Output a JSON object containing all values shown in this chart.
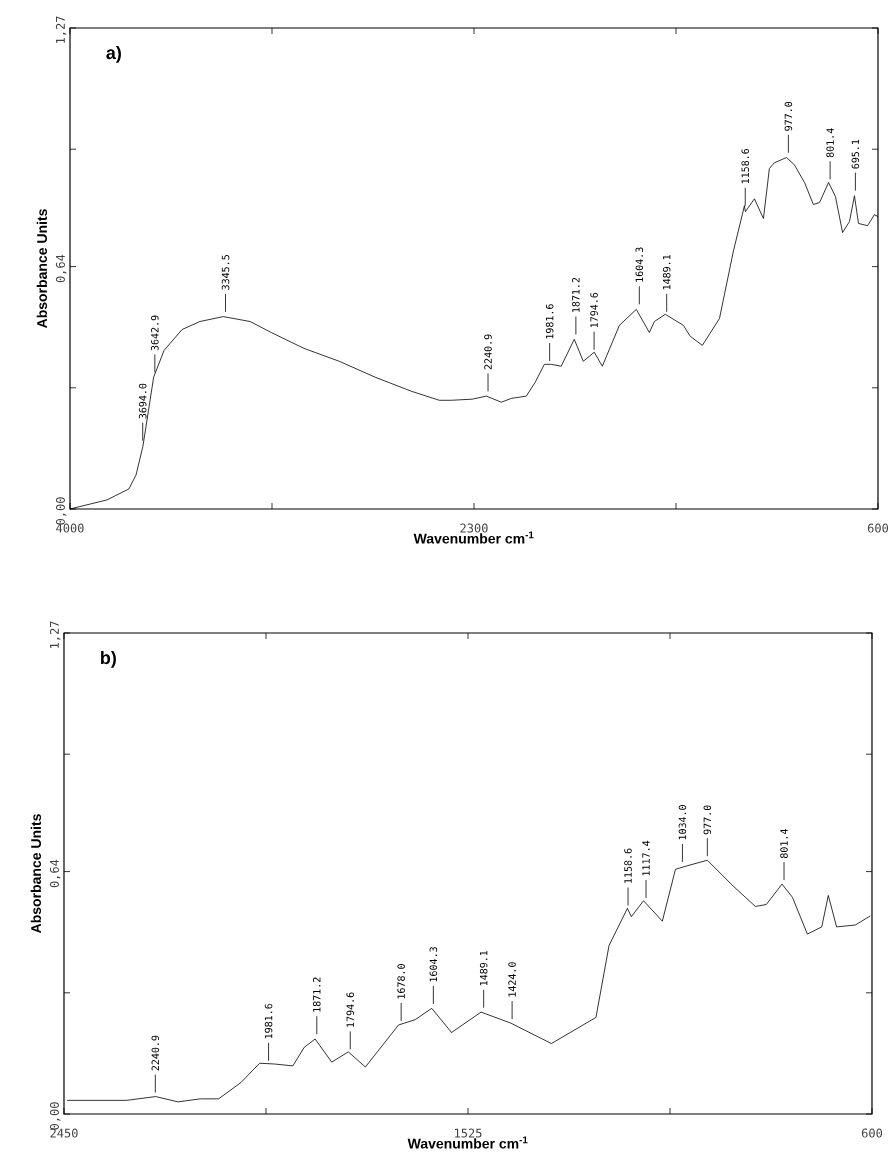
{
  "chart_data": [
    {
      "type": "line",
      "title": "a)",
      "xlabel": "Wavenumber cm$^{-1}$",
      "ylabel": "Absorbance Units",
      "color": "#000000",
      "xlim": [
        4000,
        600
      ],
      "xticks": [
        4000,
        {
          "value": 3150,
          "label": null
        },
        2300,
        {
          "value": 1450,
          "label": null
        },
        600
      ],
      "ylim": [
        0,
        1.27
      ],
      "yticks": [
        {
          "value": 0,
          "label": "0,00"
        },
        {
          "value": 0.32,
          "label": null
        },
        {
          "value": 0.64,
          "label": "0,64"
        },
        {
          "value": 0.95,
          "label": null
        },
        {
          "value": 1.27,
          "label": "1,27"
        }
      ],
      "x": [
        4000,
        3844,
        3752,
        3722,
        3693,
        3663,
        3648,
        3633,
        3604,
        3528,
        3453,
        3355,
        3242,
        3153,
        3015,
        2867,
        2716,
        2564,
        2446,
        2396,
        2307,
        2248,
        2185,
        2143,
        2080,
        2042,
        2004,
        1975,
        1933,
        1878,
        1840,
        1794,
        1760,
        1688,
        1617,
        1562,
        1541,
        1495,
        1419,
        1390,
        1339,
        1267,
        1208,
        1171,
        1162,
        1158,
        1120,
        1082,
        1057,
        1036,
        985,
        952,
        909,
        872,
        846,
        808,
        779,
        749,
        720,
        699,
        682,
        644,
        615,
        600
      ],
      "values": [
        0,
        0.024,
        0.053,
        0.09,
        0.166,
        0.287,
        0.348,
        0.372,
        0.419,
        0.474,
        0.495,
        0.508,
        0.495,
        0.466,
        0.424,
        0.39,
        0.348,
        0.311,
        0.287,
        0.287,
        0.29,
        0.298,
        0.282,
        0.292,
        0.298,
        0.335,
        0.382,
        0.382,
        0.377,
        0.448,
        0.39,
        0.414,
        0.377,
        0.485,
        0.527,
        0.466,
        0.495,
        0.514,
        0.485,
        0.456,
        0.432,
        0.503,
        0.682,
        0.777,
        0.801,
        0.785,
        0.819,
        0.767,
        0.899,
        0.914,
        0.928,
        0.909,
        0.862,
        0.804,
        0.809,
        0.862,
        0.825,
        0.73,
        0.759,
        0.827,
        0.754,
        0.748,
        0.777,
        0.772
      ],
      "annotations": [
        {
          "text": "3694.0",
          "x": 3694.0,
          "y": 0.17
        },
        {
          "text": "3642.9",
          "x": 3642.9,
          "y": 0.35
        },
        {
          "text": "3345.5",
          "x": 3345.5,
          "y": 0.51
        },
        {
          "text": "2240.9",
          "x": 2240.9,
          "y": 0.3
        },
        {
          "text": "1981.6",
          "x": 1981.6,
          "y": 0.38
        },
        {
          "text": "1871.2",
          "x": 1871.2,
          "y": 0.45
        },
        {
          "text": "1794.6",
          "x": 1794.6,
          "y": 0.41
        },
        {
          "text": "1604.3",
          "x": 1604.3,
          "y": 0.53
        },
        {
          "text": "1489.1",
          "x": 1489.1,
          "y": 0.51
        },
        {
          "text": "1158.6",
          "x": 1158.6,
          "y": 0.79
        },
        {
          "text": "977.0",
          "x": 977.0,
          "y": 0.93
        },
        {
          "text": "801.4",
          "x": 801.4,
          "y": 0.86
        },
        {
          "text": "695.1",
          "x": 695.1,
          "y": 0.83
        }
      ]
    },
    {
      "type": "line",
      "title": "b)",
      "xlabel": "Wavenumber cm$^{-1}$",
      "ylabel": "Absorbance Units",
      "color": "#000000",
      "xlim": [
        2450,
        600
      ],
      "xticks": [
        2450,
        {
          "value": 1987.5,
          "label": null
        },
        1525,
        {
          "value": 1062.5,
          "label": null
        },
        600
      ],
      "ylim": [
        0,
        1.27
      ],
      "yticks": [
        {
          "value": 0,
          "label": "0,00"
        },
        {
          "value": 0.32,
          "label": null
        },
        {
          "value": 0.64,
          "label": "0,64"
        },
        {
          "value": 0.95,
          "label": null
        },
        {
          "value": 1.27,
          "label": "1,27"
        }
      ],
      "x": [
        2443,
        2307,
        2240,
        2189,
        2138,
        2096,
        2045,
        2002,
        1968,
        1926,
        1900,
        1875,
        1837,
        1799,
        1760,
        1684,
        1646,
        1608,
        1566,
        1563,
        1495,
        1427,
        1334,
        1232,
        1202,
        1160,
        1151,
        1123,
        1080,
        1050,
        1024,
        977,
        918,
        867,
        842,
        806,
        782,
        748,
        715,
        700,
        681,
        638,
        604
      ],
      "values": [
        0.036,
        0.036,
        0.046,
        0.032,
        0.04,
        0.04,
        0.083,
        0.134,
        0.132,
        0.127,
        0.176,
        0.198,
        0.137,
        0.164,
        0.124,
        0.235,
        0.249,
        0.279,
        0.22,
        0.215,
        0.269,
        0.24,
        0.186,
        0.255,
        0.445,
        0.543,
        0.521,
        0.563,
        0.509,
        0.646,
        0.655,
        0.67,
        0.602,
        0.548,
        0.553,
        0.607,
        0.572,
        0.475,
        0.494,
        0.577,
        0.494,
        0.499,
        0.523
      ],
      "annotations": [
        {
          "text": "2240.9",
          "x": 2240.9,
          "y": 0.046
        },
        {
          "text": "1981.6",
          "x": 1981.6,
          "y": 0.13
        },
        {
          "text": "1871.2",
          "x": 1871.2,
          "y": 0.2
        },
        {
          "text": "1794.6",
          "x": 1794.6,
          "y": 0.16
        },
        {
          "text": "1678.0",
          "x": 1678.0,
          "y": 0.235
        },
        {
          "text": "1604.3",
          "x": 1604.3,
          "y": 0.28
        },
        {
          "text": "1489.1",
          "x": 1489.1,
          "y": 0.27
        },
        {
          "text": "1424.0",
          "x": 1424.0,
          "y": 0.24
        },
        {
          "text": "1158.6",
          "x": 1158.6,
          "y": 0.54
        },
        {
          "text": "1117.4",
          "x": 1117.4,
          "y": 0.56
        },
        {
          "text": "1034.0",
          "x": 1034.0,
          "y": 0.655
        },
        {
          "text": "977.0",
          "x": 977.0,
          "y": 0.67
        },
        {
          "text": "801.4",
          "x": 801.4,
          "y": 0.607
        }
      ]
    }
  ]
}
